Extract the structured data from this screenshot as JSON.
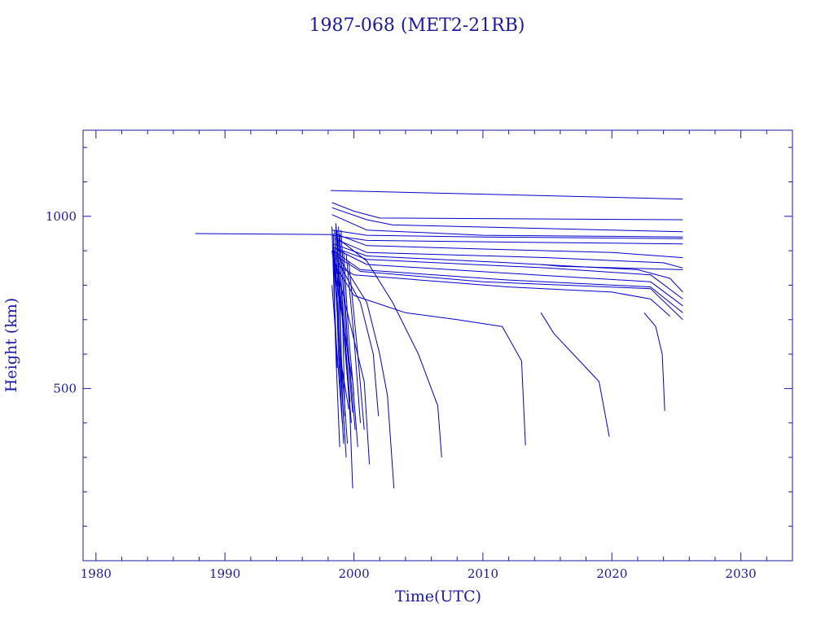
{
  "chart_data": {
    "type": "line",
    "title": "1987-068 (MET2-21RB)",
    "xlabel": "Time(UTC)",
    "ylabel": "Height (km)",
    "xlim": [
      1979,
      2034
    ],
    "ylim": [
      0,
      1250
    ],
    "x_ticks": [
      "1980",
      "1990",
      "2000",
      "2010",
      "2020",
      "2030"
    ],
    "y_ticks": [
      "500",
      "1000"
    ],
    "grid": false,
    "legend": "none",
    "color": "#0000cc",
    "axis_color": "#1a1aa6",
    "series": [
      {
        "x": [
          1987.7,
          1998.3
        ],
        "y": [
          950,
          947
        ]
      },
      {
        "x": [
          1998.2,
          2025.5
        ],
        "y": [
          1075,
          1050
        ]
      },
      {
        "x": [
          1998.3,
          2000.0,
          2002.0,
          2025.5
        ],
        "y": [
          1040,
          1015,
          995,
          990
        ]
      },
      {
        "x": [
          1998.3,
          2001.0,
          2003.0,
          2025.5
        ],
        "y": [
          1025,
          990,
          975,
          955
        ]
      },
      {
        "x": [
          1998.3,
          2001.0,
          2010.0,
          2025.5
        ],
        "y": [
          1005,
          960,
          945,
          940
        ]
      },
      {
        "x": [
          1998.3,
          2001.0,
          2010.0,
          2025.5
        ],
        "y": [
          960,
          945,
          940,
          935
        ]
      },
      {
        "x": [
          1998.3,
          2001.0,
          2012.0,
          2025.5
        ],
        "y": [
          945,
          930,
          925,
          920
        ]
      },
      {
        "x": [
          1998.5,
          2001.0,
          2010.0,
          2020.0,
          2025.5
        ],
        "y": [
          950,
          915,
          905,
          895,
          880
        ]
      },
      {
        "x": [
          1998.5,
          2001.0,
          2015.0,
          2024.0,
          2025.5
        ],
        "y": [
          935,
          895,
          880,
          865,
          850
        ]
      },
      {
        "x": [
          1998.4,
          2001.0,
          2012.0,
          2022.0,
          2024.5,
          2025.5
        ],
        "y": [
          920,
          885,
          865,
          845,
          820,
          780
        ]
      },
      {
        "x": [
          1998.4,
          2001.0,
          2015.0,
          2023.0,
          2025.5
        ],
        "y": [
          910,
          875,
          850,
          830,
          760
        ]
      },
      {
        "x": [
          1998.6,
          2001.0,
          2014.0,
          2023.0,
          2025.5
        ],
        "y": [
          905,
          860,
          830,
          810,
          740
        ]
      },
      {
        "x": [
          1998.4,
          2000.5,
          2012.0,
          2023.0,
          2025.5
        ],
        "y": [
          900,
          845,
          815,
          795,
          720
        ]
      },
      {
        "x": [
          1998.4,
          2000.5,
          2010.0,
          2023.0,
          2025.5
        ],
        "y": [
          890,
          840,
          810,
          790,
          700
        ]
      },
      {
        "x": [
          1998.6,
          2000.0,
          2012.0,
          2020.0,
          2023.0,
          2024.5
        ],
        "y": [
          860,
          830,
          795,
          780,
          760,
          710
        ]
      },
      {
        "x": [
          2014.5,
          2016.0,
          2025.5
        ],
        "y": [
          860,
          855,
          845
        ]
      },
      {
        "x": [
          1998.5,
          2000.0,
          2004.0,
          2008.0,
          2011.5,
          2013.0,
          2013.3
        ],
        "y": [
          860,
          770,
          720,
          700,
          680,
          580,
          335
        ]
      },
      {
        "x": [
          2014.5,
          2015.5,
          2017.0,
          2019.0,
          2019.8
        ],
        "y": [
          720,
          660,
          600,
          520,
          360
        ]
      },
      {
        "x": [
          2022.5,
          2023.4,
          2023.9,
          2024.1
        ],
        "y": [
          720,
          680,
          600,
          435
        ]
      },
      {
        "x": [
          1998.6,
          2001.0,
          2003.0,
          2005.0,
          2006.5,
          2006.8
        ],
        "y": [
          940,
          870,
          750,
          600,
          450,
          300
        ]
      },
      {
        "x": [
          1998.5,
          2001.0,
          2002.0,
          2002.6,
          2003.1
        ],
        "y": [
          900,
          750,
          600,
          480,
          210
        ]
      },
      {
        "x": [
          1998.6,
          2000.5,
          2001.5,
          2001.9
        ],
        "y": [
          880,
          750,
          600,
          420
        ]
      },
      {
        "x": [
          1998.4,
          1999.5,
          2000.8,
          2001.2
        ],
        "y": [
          890,
          720,
          520,
          280
        ]
      },
      {
        "x": [
          1998.3,
          1999.2,
          1999.9,
          2000.3
        ],
        "y": [
          900,
          680,
          520,
          330
        ]
      },
      {
        "x": [
          1998.4,
          1999.3,
          1999.7,
          1999.9
        ],
        "y": [
          920,
          650,
          420,
          210
        ]
      },
      {
        "x": [
          1998.3,
          1998.6,
          1998.9
        ],
        "y": [
          970,
          600,
          330
        ]
      },
      {
        "x": [
          1998.5,
          1998.8,
          1999.2
        ],
        "y": [
          960,
          600,
          340
        ]
      },
      {
        "x": [
          1998.6,
          1998.9,
          1999.4
        ],
        "y": [
          975,
          580,
          300
        ]
      },
      {
        "x": [
          1998.7,
          1999.0,
          1999.5
        ],
        "y": [
          940,
          600,
          340
        ]
      },
      {
        "x": [
          1998.4,
          1998.9,
          1999.6
        ],
        "y": [
          900,
          600,
          440
        ]
      },
      {
        "x": [
          1998.8,
          1999.2,
          1999.7
        ],
        "y": [
          930,
          700,
          460
        ]
      },
      {
        "x": [
          1998.9,
          1999.4,
          1999.9
        ],
        "y": [
          950,
          650,
          430
        ]
      },
      {
        "x": [
          1999.0,
          1999.5,
          2000.1
        ],
        "y": [
          960,
          640,
          380
        ]
      },
      {
        "x": [
          1998.3,
          1998.7,
          1999.1
        ],
        "y": [
          800,
          600,
          400
        ]
      },
      {
        "x": [
          1998.5,
          1999.0,
          1999.3
        ],
        "y": [
          870,
          560,
          350
        ]
      },
      {
        "x": [
          1998.6,
          1999.1,
          1999.8
        ],
        "y": [
          980,
          700,
          400
        ]
      },
      {
        "x": [
          1999.2,
          1999.6,
          2000.0
        ],
        "y": [
          900,
          650,
          480
        ]
      },
      {
        "x": [
          1999.4,
          2000.0,
          2000.5
        ],
        "y": [
          890,
          650,
          400
        ]
      },
      {
        "x": [
          1999.6,
          2000.3,
          2000.8
        ],
        "y": [
          870,
          600,
          380
        ]
      },
      {
        "x": [
          1998.4,
          1998.5,
          1998.7
        ],
        "y": [
          950,
          750,
          560
        ]
      },
      {
        "x": [
          1998.7,
          1998.9,
          1999.1
        ],
        "y": [
          960,
          760,
          500
        ]
      },
      {
        "x": [
          1998.8,
          1999.1,
          1999.3
        ],
        "y": [
          970,
          740,
          420
        ]
      }
    ]
  }
}
